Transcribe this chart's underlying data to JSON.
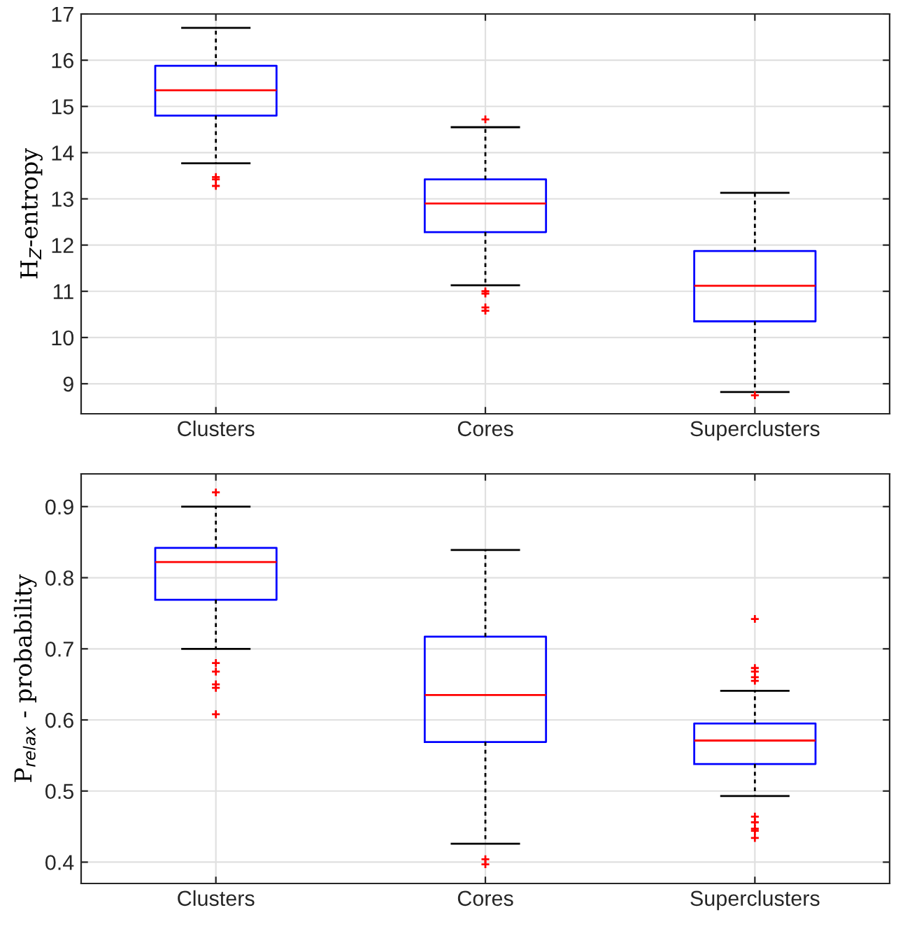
{
  "chart_data": [
    {
      "type": "box",
      "ylabel": "H$_{Z}$-entropy",
      "categories": [
        "Clusters",
        "Cores",
        "Superclusters"
      ],
      "ylim": [
        8.35,
        17
      ],
      "yticks": [
        9,
        10,
        11,
        12,
        13,
        14,
        15,
        16,
        17
      ],
      "grid": true,
      "marker": "cross",
      "series": [
        {
          "color": "#0000ff",
          "boxes": [
            {
              "low": 13.77,
              "q1": 14.8,
              "median": 15.35,
              "q3": 15.88,
              "high": 16.7,
              "outliers": [
                13.47,
                13.42,
                13.28
              ]
            },
            {
              "low": 11.13,
              "q1": 12.28,
              "median": 12.9,
              "q3": 13.42,
              "high": 14.55,
              "outliers": [
                14.72,
                11.0,
                10.95,
                10.65,
                10.58
              ]
            },
            {
              "low": 8.82,
              "q1": 10.35,
              "median": 11.12,
              "q3": 11.87,
              "high": 13.13,
              "outliers": [
                8.75
              ]
            }
          ]
        }
      ]
    },
    {
      "type": "box",
      "ylabel": "P$_{relax}$ - probability",
      "categories": [
        "Clusters",
        "Cores",
        "Superclusters"
      ],
      "ylim": [
        0.37,
        0.946
      ],
      "yticks": [
        0.4,
        0.5,
        0.6,
        0.7,
        0.8,
        0.9
      ],
      "grid": true,
      "marker": "cross",
      "series": [
        {
          "color": "#0000ff",
          "boxes": [
            {
              "low": 0.7,
              "q1": 0.769,
              "median": 0.822,
              "q3": 0.842,
              "high": 0.9,
              "outliers": [
                0.92,
                0.68,
                0.668,
                0.65,
                0.645,
                0.608
              ]
            },
            {
              "low": 0.426,
              "q1": 0.569,
              "median": 0.635,
              "q3": 0.717,
              "high": 0.839,
              "outliers": [
                0.404,
                0.397
              ]
            },
            {
              "low": 0.493,
              "q1": 0.538,
              "median": 0.571,
              "q3": 0.595,
              "high": 0.641,
              "outliers": [
                0.742,
                0.673,
                0.668,
                0.66,
                0.655,
                0.464,
                0.456,
                0.447,
                0.444,
                0.434
              ]
            }
          ]
        }
      ]
    }
  ]
}
